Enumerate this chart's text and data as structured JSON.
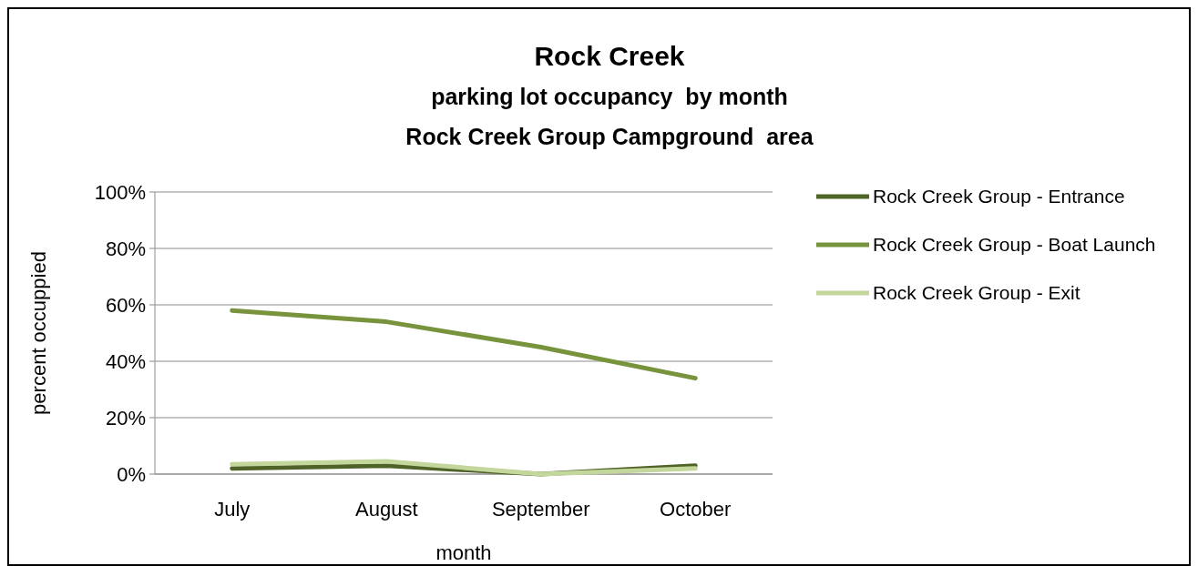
{
  "chart_data": {
    "type": "line",
    "title": "Rock Creek",
    "subtitle": "parking lot occupancy  by month\nRock Creek Group Campground  area",
    "xlabel": "month",
    "ylabel": "percent occuppied",
    "categories": [
      "July",
      "August",
      "September",
      "October"
    ],
    "series": [
      {
        "name": "Rock Creek Group - Entrance",
        "color": "#4f6228",
        "values": [
          2,
          3,
          0,
          3
        ]
      },
      {
        "name": "Rock Creek Group - Boat Launch",
        "color": "#77933c",
        "values": [
          58,
          54,
          45,
          34
        ]
      },
      {
        "name": "Rock Creek Group - Exit",
        "color": "#c3d69b",
        "values": [
          3.5,
          4.5,
          0,
          2
        ]
      }
    ],
    "ylim": [
      0,
      100
    ],
    "yticks": [
      {
        "value": 0,
        "label": "0%"
      },
      {
        "value": 20,
        "label": "20%"
      },
      {
        "value": 40,
        "label": "40%"
      },
      {
        "value": 60,
        "label": "60%"
      },
      {
        "value": 80,
        "label": "80%"
      },
      {
        "value": 100,
        "label": "100%"
      }
    ],
    "grid": "y",
    "legend": "right",
    "marker": "none",
    "line_style": "solid"
  }
}
